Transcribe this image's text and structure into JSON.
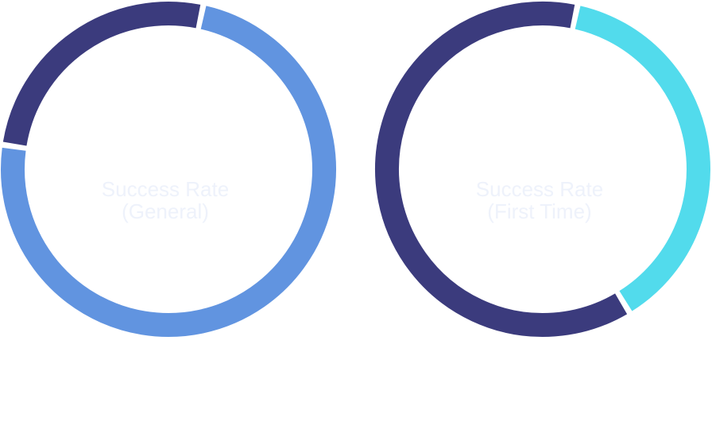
{
  "chart_data": [
    {
      "type": "pie",
      "style": "donut",
      "center_label": [
        "Success Rate",
        "(General)"
      ],
      "slices": [
        {
          "value": 0.74,
          "color": "#6194e0"
        },
        {
          "value": 0.26,
          "color": "#3b3b7d"
        }
      ]
    },
    {
      "type": "pie",
      "style": "donut",
      "center_label": [
        "Success Rate",
        "(First Time)"
      ],
      "slices": [
        {
          "value": 0.38,
          "color": "#52dbec"
        },
        {
          "value": 0.62,
          "color": "#3b3b7d"
        }
      ]
    }
  ],
  "colors": {
    "label_text": "#eef2fb",
    "background": "#ffffff"
  }
}
